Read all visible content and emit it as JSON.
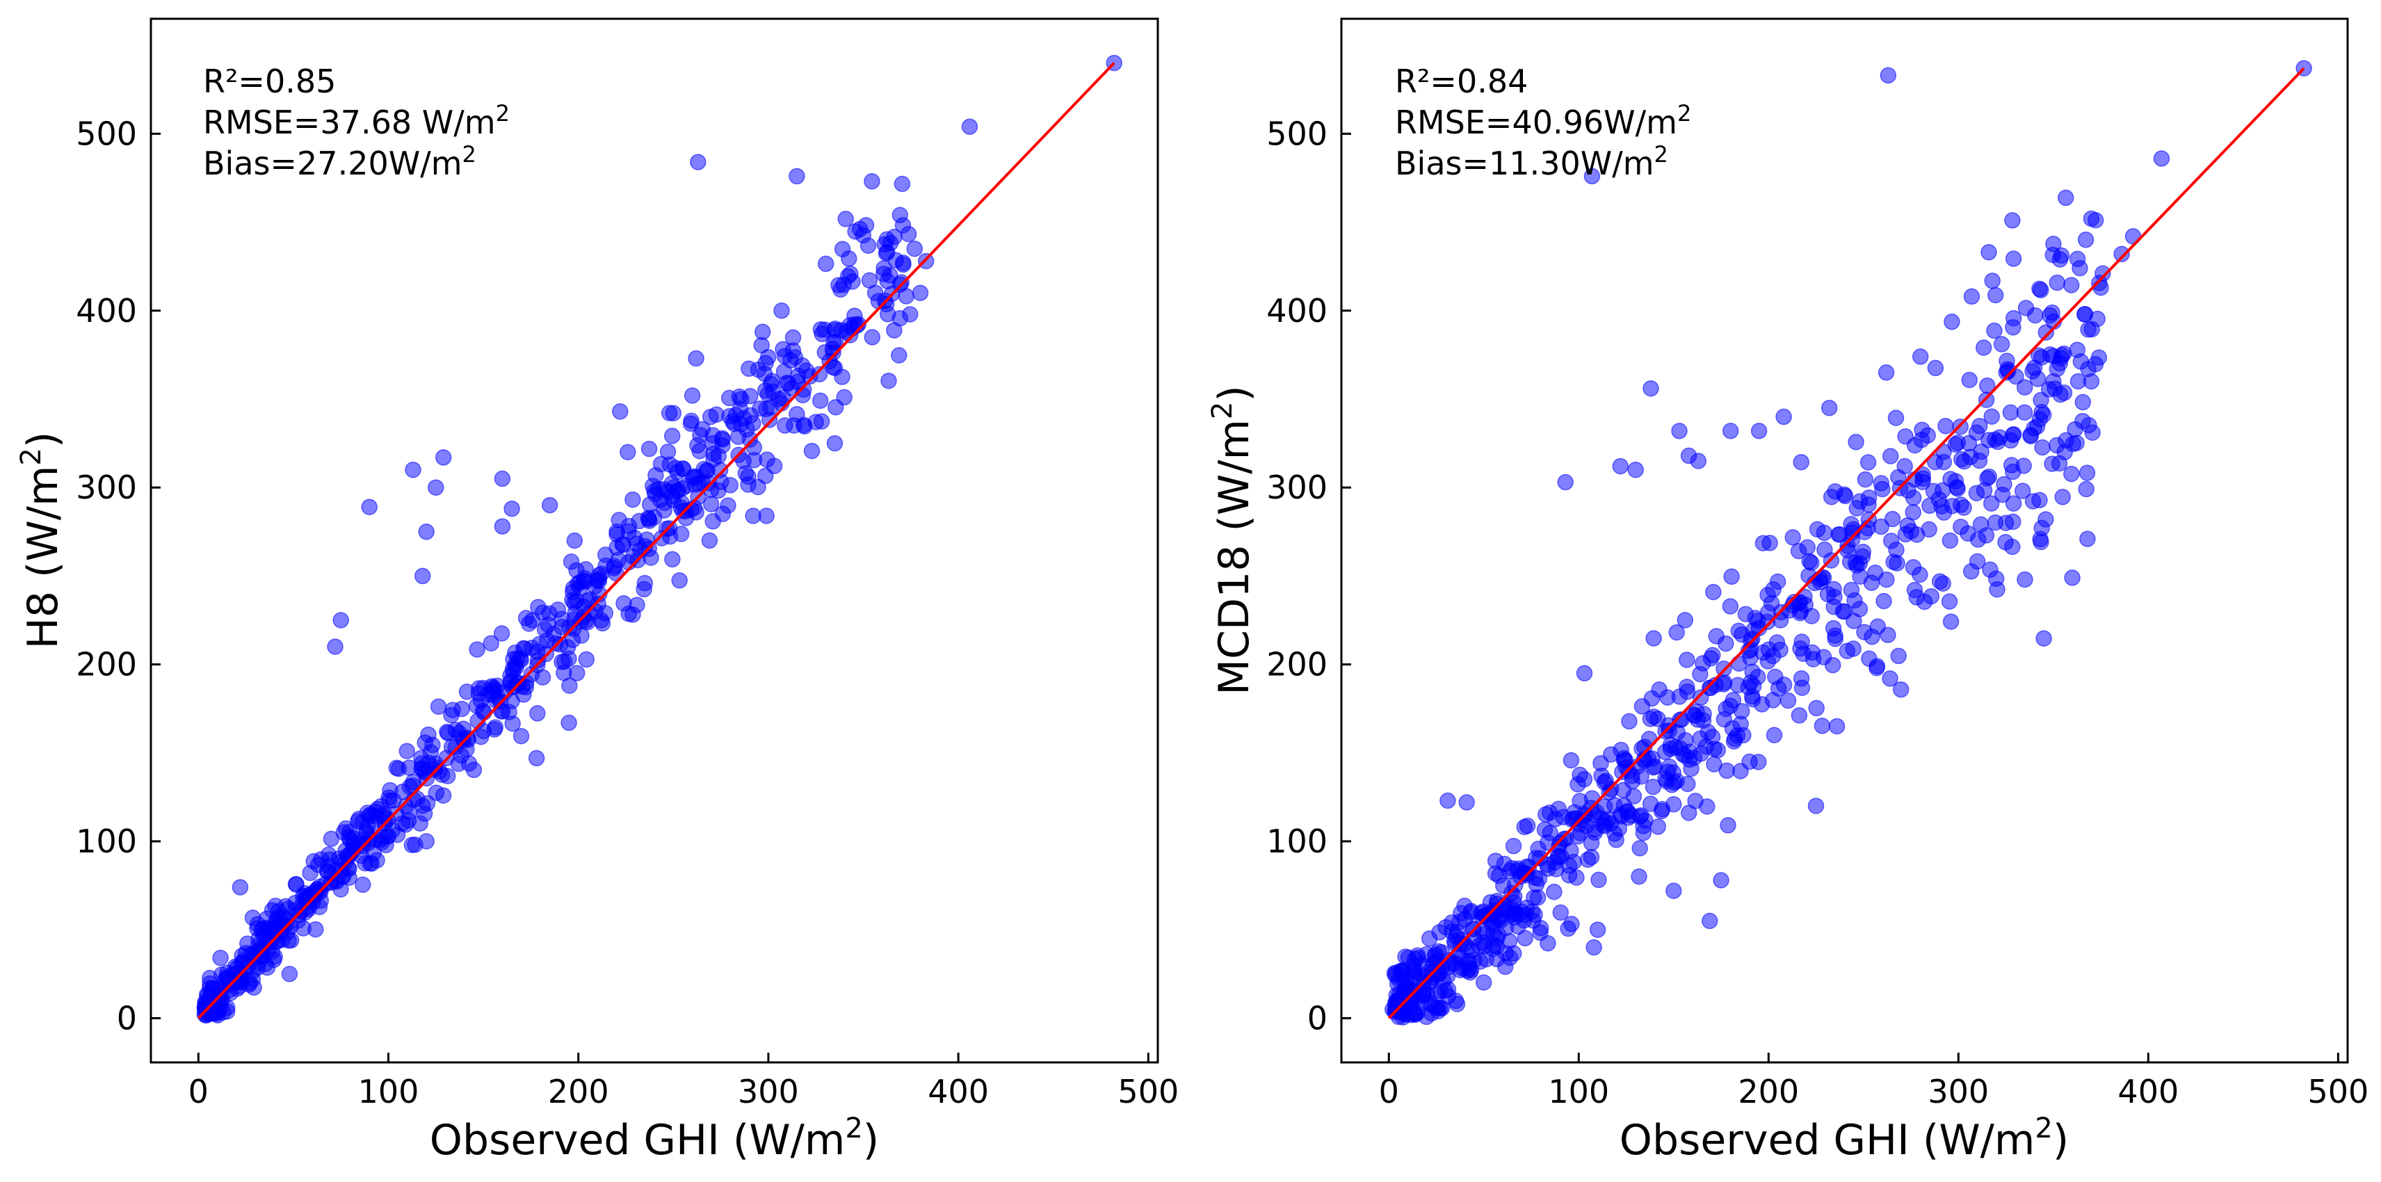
{
  "chart_data": [
    {
      "type": "scatter",
      "id": "h8",
      "xlabel": "Observed GHI (W/m²)",
      "ylabel": "H8 (W/m²)",
      "xlabel_parts": {
        "prefix": "Observed GHI (W/m",
        "sup": "2",
        "suffix": ")"
      },
      "ylabel_parts": {
        "prefix": "H8 (W/m",
        "sup": "2",
        "suffix": ")"
      },
      "xlim": [
        -25,
        505
      ],
      "ylim": [
        -25,
        565
      ],
      "xticks": [
        0,
        100,
        200,
        300,
        400,
        500
      ],
      "yticks": [
        0,
        100,
        200,
        300,
        400,
        500
      ],
      "grid": false,
      "point_color": "#0000ff",
      "line_color": "#ff0000",
      "fit_line": [
        [
          0,
          0
        ],
        [
          482,
          540
        ]
      ],
      "stats": {
        "r2": "R²=0.85",
        "rmse": "RMSE=37.68 W/m",
        "rmse_sup": "2",
        "bias": "Bias=27.20W/m",
        "bias_sup": "2"
      },
      "outliers": [
        [
          482,
          540
        ],
        [
          406,
          504
        ],
        [
          263,
          484
        ],
        [
          315,
          476
        ],
        [
          377,
          435
        ],
        [
          383,
          428
        ],
        [
          364,
          420
        ],
        [
          370,
          416
        ],
        [
          380,
          410
        ],
        [
          262,
          373
        ],
        [
          297,
          388
        ],
        [
          307,
          400
        ],
        [
          222,
          343
        ],
        [
          90,
          289
        ],
        [
          129,
          317
        ],
        [
          113,
          310
        ],
        [
          120,
          275
        ],
        [
          125,
          300
        ],
        [
          160,
          305
        ],
        [
          165,
          288
        ],
        [
          185,
          290
        ],
        [
          75,
          225
        ],
        [
          72,
          210
        ],
        [
          118,
          250
        ],
        [
          240,
          298
        ],
        [
          178,
          147
        ],
        [
          195,
          167
        ],
        [
          120,
          100
        ],
        [
          48,
          25
        ],
        [
          10,
          13
        ],
        [
          22,
          74
        ],
        [
          260,
          352
        ],
        [
          299,
          284
        ],
        [
          292,
          284
        ],
        [
          250,
          342
        ],
        [
          226,
          320
        ],
        [
          335,
          325
        ],
        [
          325,
          337
        ],
        [
          340,
          351
        ],
        [
          198,
          270
        ],
        [
          160,
          278
        ]
      ],
      "cluster": {
        "n": 720,
        "x0": 3,
        "x1": 375,
        "bias_slope": 1.115,
        "bias_offset": 7,
        "noise": 14,
        "seed": 17
      }
    },
    {
      "type": "scatter",
      "id": "mcd18",
      "xlabel": "Observed GHI (W/m²)",
      "ylabel": "MCD18 (W/m²)",
      "xlabel_parts": {
        "prefix": "Observed GHI (W/m",
        "sup": "2",
        "suffix": ")"
      },
      "ylabel_parts": {
        "prefix": "MCD18 (W/m",
        "sup": "2",
        "suffix": ")"
      },
      "xlim": [
        -25,
        505
      ],
      "ylim": [
        -25,
        565
      ],
      "xticks": [
        0,
        100,
        200,
        300,
        400,
        500
      ],
      "yticks": [
        0,
        100,
        200,
        300,
        400,
        500
      ],
      "grid": false,
      "point_color": "#0000ff",
      "line_color": "#ff0000",
      "fit_line": [
        [
          0,
          0
        ],
        [
          482,
          537
        ]
      ],
      "stats": {
        "r2": "R²=0.84",
        "rmse": "RMSE=40.96W/m",
        "rmse_sup": "2",
        "bias": "Bias=11.30W/m",
        "bias_sup": "2"
      },
      "outliers": [
        [
          482,
          537
        ],
        [
          263,
          533
        ],
        [
          407,
          486
        ],
        [
          107,
          476
        ],
        [
          370,
          452
        ],
        [
          392,
          442
        ],
        [
          386,
          432
        ],
        [
          376,
          421
        ],
        [
          375,
          413
        ],
        [
          364,
          424
        ],
        [
          307,
          408
        ],
        [
          316,
          433
        ],
        [
          280,
          374
        ],
        [
          262,
          365
        ],
        [
          232,
          345
        ],
        [
          208,
          340
        ],
        [
          195,
          332
        ],
        [
          93,
          303
        ],
        [
          138,
          356
        ],
        [
          122,
          312
        ],
        [
          130,
          310
        ],
        [
          158,
          318
        ],
        [
          163,
          315
        ],
        [
          153,
          332
        ],
        [
          180,
          332
        ],
        [
          264,
          192
        ],
        [
          257,
          198
        ],
        [
          225,
          120
        ],
        [
          236,
          165
        ],
        [
          278,
          238
        ],
        [
          335,
          248
        ],
        [
          360,
          249
        ],
        [
          346,
          282
        ],
        [
          325,
          280
        ],
        [
          305,
          274
        ],
        [
          356,
          320
        ],
        [
          350,
          360
        ],
        [
          370,
          360
        ],
        [
          31,
          123
        ],
        [
          41,
          122
        ],
        [
          103,
          195
        ],
        [
          150,
          72
        ],
        [
          169,
          55
        ],
        [
          175,
          78
        ],
        [
          108,
          40
        ],
        [
          110,
          50
        ],
        [
          2,
          5
        ],
        [
          14,
          2
        ],
        [
          26,
          4
        ],
        [
          36,
          8
        ],
        [
          190,
          145
        ],
        [
          203,
          160
        ]
      ],
      "cluster": {
        "n": 780,
        "x0": 3,
        "x1": 375,
        "bias_slope": 1.0,
        "bias_offset": 3,
        "noise": 24,
        "seed": 41
      }
    }
  ]
}
